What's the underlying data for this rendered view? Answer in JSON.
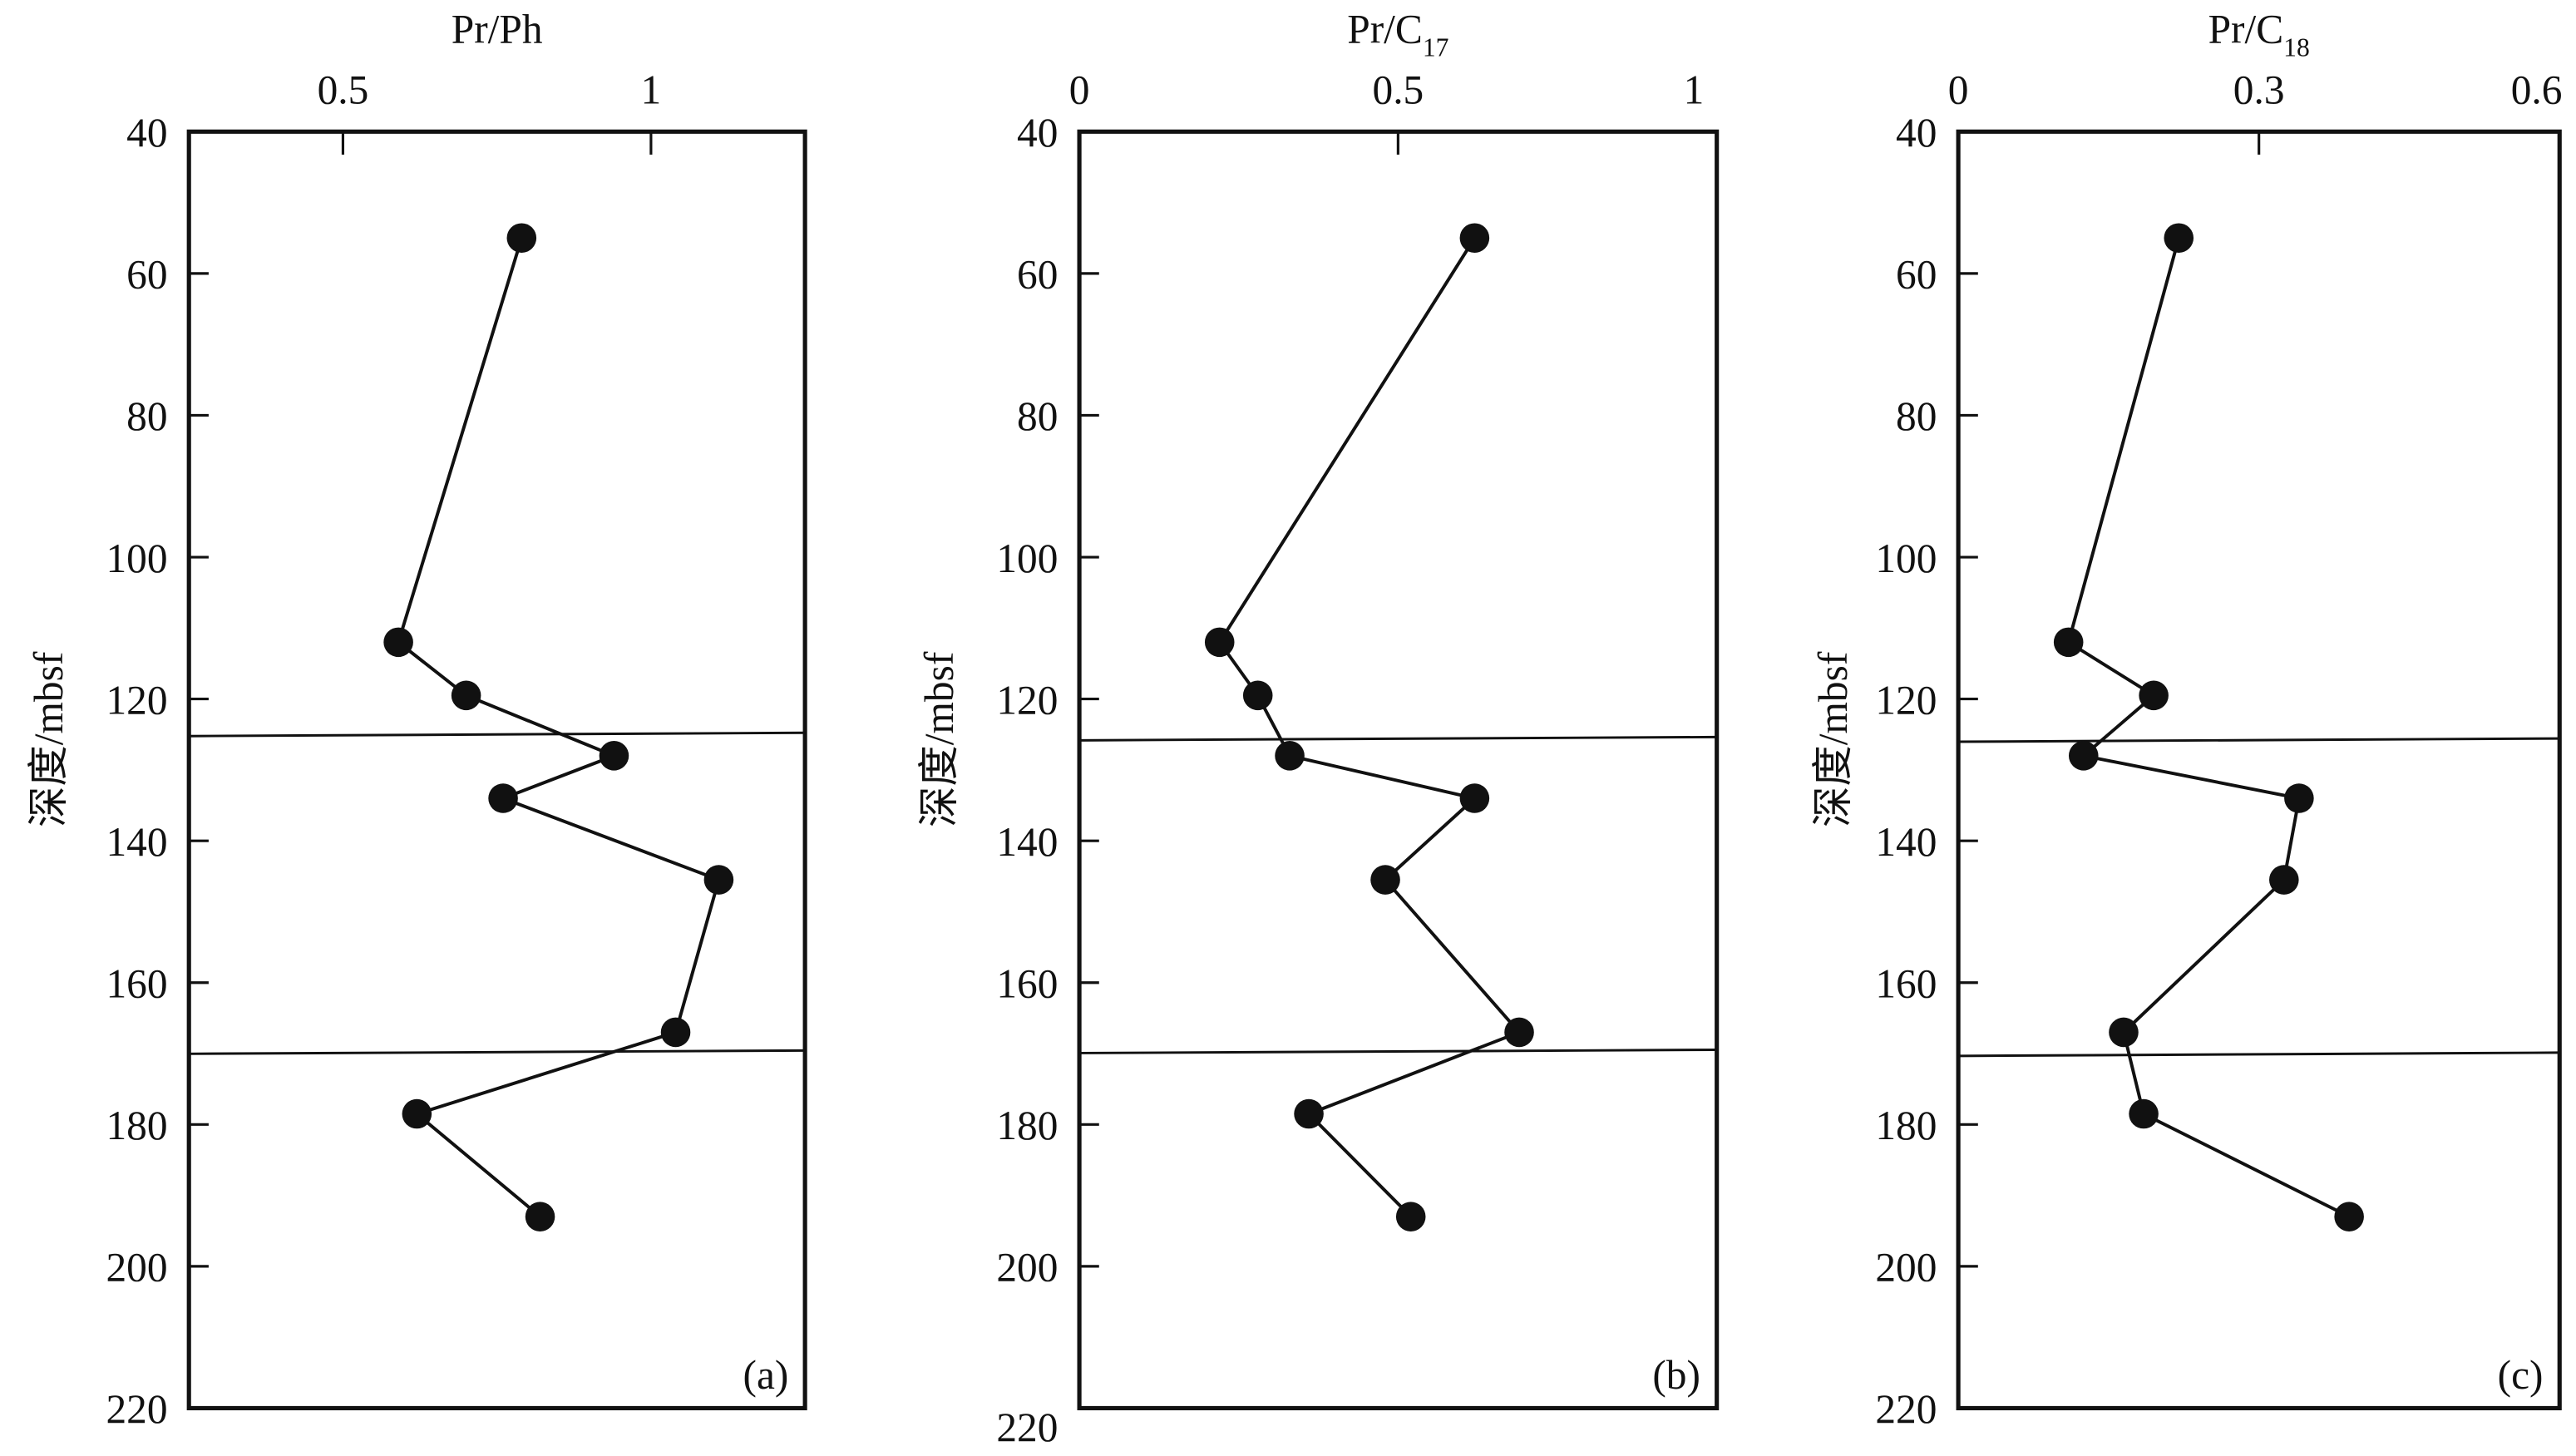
{
  "chart_data": [
    {
      "type": "line",
      "panel_label": "(a)",
      "title": "Pr/Ph",
      "title_sub": "",
      "xlabel": "Pr/Ph",
      "ylabel": "深度/mbsf",
      "xlim": [
        0.25,
        1.25
      ],
      "x_ticks": [
        0.5,
        1
      ],
      "x_tick_labels": [
        "0.5",
        "1"
      ],
      "ylim": [
        40,
        220
      ],
      "y_ticks": [
        40,
        60,
        80,
        100,
        120,
        140,
        160,
        180,
        200,
        220
      ],
      "y_inverted": true,
      "x": [
        0.79,
        0.59,
        0.7,
        0.94,
        0.76,
        1.11,
        1.04,
        0.62,
        0.82
      ],
      "y": [
        55,
        112,
        119.5,
        128,
        134,
        145.5,
        167,
        178.5,
        193
      ],
      "boundaries": [
        125,
        169.8
      ]
    },
    {
      "type": "line",
      "panel_label": "(b)",
      "title": "Pr/C",
      "title_sub": "17",
      "xlabel": "Pr/C17",
      "ylabel": "深度/mbsf",
      "xlim": [
        0,
        1
      ],
      "x_ticks": [
        0,
        0.5,
        1
      ],
      "x_tick_labels": [
        "0",
        "0.5",
        "1"
      ],
      "ylim": [
        40,
        220
      ],
      "y_ticks": [
        40,
        60,
        80,
        100,
        120,
        140,
        160,
        180,
        200,
        220
      ],
      "y_inverted": true,
      "x": [
        0.62,
        0.22,
        0.28,
        0.33,
        0.62,
        0.48,
        0.69,
        0.36,
        0.52
      ],
      "y": [
        55,
        112,
        119.5,
        128,
        134,
        145.5,
        167,
        178.5,
        193
      ],
      "boundaries": [
        125.6,
        169.7
      ]
    },
    {
      "type": "line",
      "panel_label": "(c)",
      "title": "Pr/C",
      "title_sub": "18",
      "xlabel": "Pr/C18",
      "ylabel": "深度/mbsf",
      "xlim": [
        0,
        0.6
      ],
      "x_ticks": [
        0,
        0.3,
        0.6
      ],
      "x_tick_labels": [
        "0",
        "0.3",
        "0.6"
      ],
      "ylim": [
        40,
        220
      ],
      "y_ticks": [
        40,
        60,
        80,
        100,
        120,
        140,
        160,
        180,
        200,
        220
      ],
      "y_inverted": true,
      "x": [
        0.22,
        0.11,
        0.195,
        0.125,
        0.34,
        0.325,
        0.165,
        0.185,
        0.39
      ],
      "y": [
        55,
        112,
        119.5,
        128,
        134,
        145.5,
        167,
        178.5,
        193
      ],
      "boundaries": [
        125.8,
        170.1
      ]
    }
  ]
}
